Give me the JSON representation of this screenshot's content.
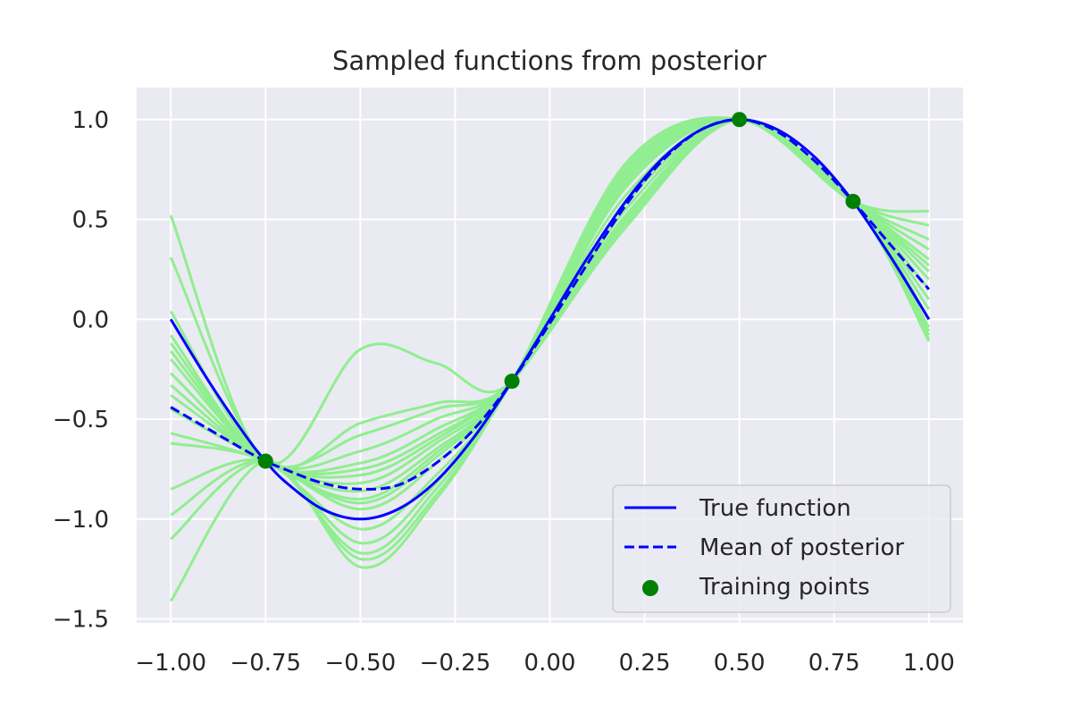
{
  "chart_data": {
    "type": "line",
    "title": "Sampled functions from posterior",
    "xlabel": "",
    "ylabel": "",
    "xlim": [
      -1.09,
      1.09
    ],
    "ylim": [
      -1.52,
      1.16
    ],
    "grid": true,
    "legend_position": "lower-right",
    "x_ticks": [
      {
        "value": -1.0,
        "label": "−1.00"
      },
      {
        "value": -0.75,
        "label": "−0.75"
      },
      {
        "value": -0.5,
        "label": "−0.50"
      },
      {
        "value": -0.25,
        "label": "−0.25"
      },
      {
        "value": 0.0,
        "label": "0.00"
      },
      {
        "value": 0.25,
        "label": "0.25"
      },
      {
        "value": 0.5,
        "label": "0.50"
      },
      {
        "value": 0.75,
        "label": "0.75"
      },
      {
        "value": 1.0,
        "label": "1.00"
      }
    ],
    "y_ticks": [
      {
        "value": 1.0,
        "label": "1.0"
      },
      {
        "value": 0.5,
        "label": "0.5"
      },
      {
        "value": 0.0,
        "label": "0.0"
      },
      {
        "value": -0.5,
        "label": "−0.5"
      },
      {
        "value": -1.0,
        "label": "−1.0"
      },
      {
        "value": -1.5,
        "label": "−1.5"
      }
    ],
    "x_samples": [
      -1.0,
      -0.75,
      -0.5,
      -0.3,
      -0.1,
      0.2,
      0.5,
      0.8,
      1.0
    ],
    "true_function": {
      "name": "True function",
      "color": "#0000ff",
      "style": "solid",
      "x": [
        -1.0,
        -0.9,
        -0.8,
        -0.75,
        -0.7,
        -0.6,
        -0.5,
        -0.4,
        -0.3,
        -0.2,
        -0.1,
        0.0,
        0.1,
        0.2,
        0.3,
        0.4,
        0.5,
        0.6,
        0.7,
        0.8,
        0.9,
        1.0
      ],
      "y": [
        0.0,
        -0.31,
        -0.59,
        -0.71,
        -0.81,
        -0.95,
        -1.0,
        -0.95,
        -0.81,
        -0.59,
        -0.31,
        0.0,
        0.31,
        0.59,
        0.81,
        0.95,
        1.0,
        0.95,
        0.81,
        0.59,
        0.31,
        0.0
      ]
    },
    "posterior_mean": {
      "name": "Mean of posterior",
      "color": "#0000ff",
      "style": "dashed",
      "x": [
        -1.0,
        -0.9,
        -0.8,
        -0.75,
        -0.7,
        -0.6,
        -0.5,
        -0.4,
        -0.3,
        -0.2,
        -0.1,
        0.0,
        0.1,
        0.2,
        0.3,
        0.4,
        0.5,
        0.6,
        0.7,
        0.8,
        0.9,
        1.0
      ],
      "y": [
        -0.44,
        -0.55,
        -0.66,
        -0.71,
        -0.75,
        -0.82,
        -0.85,
        -0.83,
        -0.72,
        -0.55,
        -0.31,
        -0.02,
        0.28,
        0.57,
        0.8,
        0.95,
        1.0,
        0.94,
        0.79,
        0.59,
        0.37,
        0.15
      ]
    },
    "training_points": {
      "name": "Training points",
      "color": "#008000",
      "x": [
        -0.75,
        -0.1,
        0.5,
        0.8
      ],
      "y": [
        -0.71,
        -0.31,
        1.0,
        0.59
      ]
    },
    "posterior_samples": {
      "color": "#90ee90",
      "samples": [
        [
          0.52,
          -0.71,
          -0.15,
          -0.22,
          -0.31,
          0.7,
          1.0,
          0.59,
          0.54
        ],
        [
          0.31,
          -0.71,
          -0.52,
          -0.42,
          -0.31,
          0.58,
          1.0,
          0.59,
          0.47
        ],
        [
          0.04,
          -0.71,
          -0.58,
          -0.45,
          -0.31,
          0.55,
          1.0,
          0.59,
          0.4
        ],
        [
          -0.08,
          -0.71,
          -0.66,
          -0.5,
          -0.31,
          0.52,
          1.0,
          0.59,
          0.35
        ],
        [
          -0.12,
          -0.71,
          -0.72,
          -0.55,
          -0.31,
          0.5,
          1.0,
          0.59,
          0.3
        ],
        [
          -0.16,
          -0.71,
          -0.75,
          -0.58,
          -0.31,
          0.48,
          1.0,
          0.59,
          0.27
        ],
        [
          -0.2,
          -0.71,
          -0.78,
          -0.6,
          -0.31,
          0.46,
          1.0,
          0.59,
          0.24
        ],
        [
          -0.27,
          -0.71,
          -0.82,
          -0.62,
          -0.31,
          0.62,
          1.0,
          0.59,
          0.2
        ],
        [
          -0.33,
          -0.71,
          -0.86,
          -0.65,
          -0.31,
          0.66,
          1.0,
          0.59,
          0.15
        ],
        [
          -0.38,
          -0.71,
          -0.9,
          -0.67,
          -0.31,
          0.68,
          1.0,
          0.59,
          0.1
        ],
        [
          -0.45,
          -0.71,
          -0.92,
          -0.69,
          -0.31,
          0.7,
          1.0,
          0.59,
          0.05
        ],
        [
          -0.57,
          -0.71,
          -0.95,
          -0.72,
          -0.31,
          0.72,
          1.0,
          0.59,
          0.0
        ],
        [
          -0.62,
          -0.71,
          -1.05,
          -0.78,
          -0.31,
          0.74,
          1.0,
          0.59,
          -0.04
        ],
        [
          -0.85,
          -0.71,
          -1.12,
          -0.82,
          -0.31,
          0.76,
          1.0,
          0.59,
          -0.08
        ],
        [
          -0.98,
          -0.71,
          -1.17,
          -0.85,
          -0.31,
          0.78,
          1.0,
          0.59,
          -0.1
        ],
        [
          -1.1,
          -0.71,
          -1.2,
          -0.88,
          -0.31,
          0.75,
          1.0,
          0.59,
          -0.06
        ],
        [
          -1.41,
          -0.71,
          -1.24,
          -0.9,
          -0.31,
          0.73,
          1.0,
          0.59,
          -0.11
        ]
      ]
    },
    "legend": [
      {
        "label": "True function",
        "kind": "solid-line"
      },
      {
        "label": "Mean of posterior",
        "kind": "dashed-line"
      },
      {
        "label": "Training points",
        "kind": "marker"
      }
    ]
  }
}
